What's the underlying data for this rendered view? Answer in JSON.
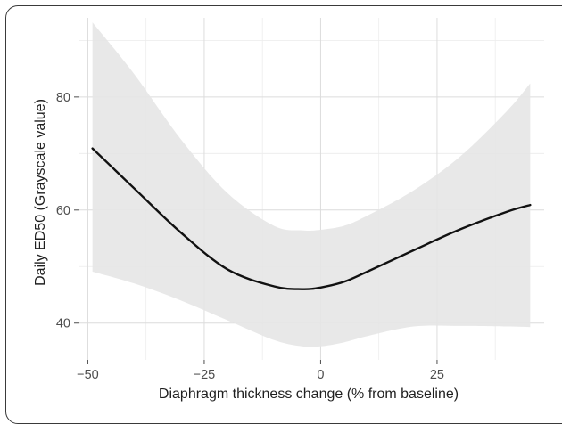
{
  "chart_data": {
    "type": "line",
    "title": "",
    "xlabel": "Diaphragm thickness change (% from baseline)",
    "ylabel": "Daily ED50 (Grayscale value)",
    "xlim": [
      -52,
      48
    ],
    "ylim": [
      33.5,
      94
    ],
    "x_ticks": [
      -50,
      -25,
      0,
      25
    ],
    "x_tick_labels": [
      "−50",
      "−25",
      "0",
      "25"
    ],
    "y_ticks": [
      40,
      60,
      80
    ],
    "y_tick_labels": [
      "40",
      "60",
      "80"
    ],
    "grid": true,
    "legend": "none",
    "series": [
      {
        "name": "",
        "style": "fitted-line",
        "color": "#111111",
        "x": [
          -49,
          -40,
          -30,
          -20,
          -10,
          -4,
          0,
          5,
          10,
          20,
          30,
          40,
          45
        ],
        "y": [
          70.9,
          63.8,
          56.0,
          49.5,
          46.5,
          46.0,
          46.3,
          47.3,
          49.1,
          52.9,
          56.6,
          59.7,
          60.9
        ]
      }
    ],
    "confidence_band": {
      "color": "#e6e6e6",
      "x": [
        -49,
        -40,
        -30,
        -20,
        -10,
        -4,
        0,
        5,
        10,
        20,
        30,
        40,
        45
      ],
      "upper": [
        93.2,
        84.0,
        72.5,
        63.0,
        57.2,
        56.4,
        56.5,
        57.2,
        59.0,
        63.5,
        69.5,
        77.5,
        82.4
      ],
      "lower": [
        49.1,
        47.0,
        44.0,
        40.5,
        37.0,
        35.9,
        35.9,
        36.6,
        37.7,
        39.4,
        39.5,
        39.4,
        39.3
      ]
    }
  }
}
